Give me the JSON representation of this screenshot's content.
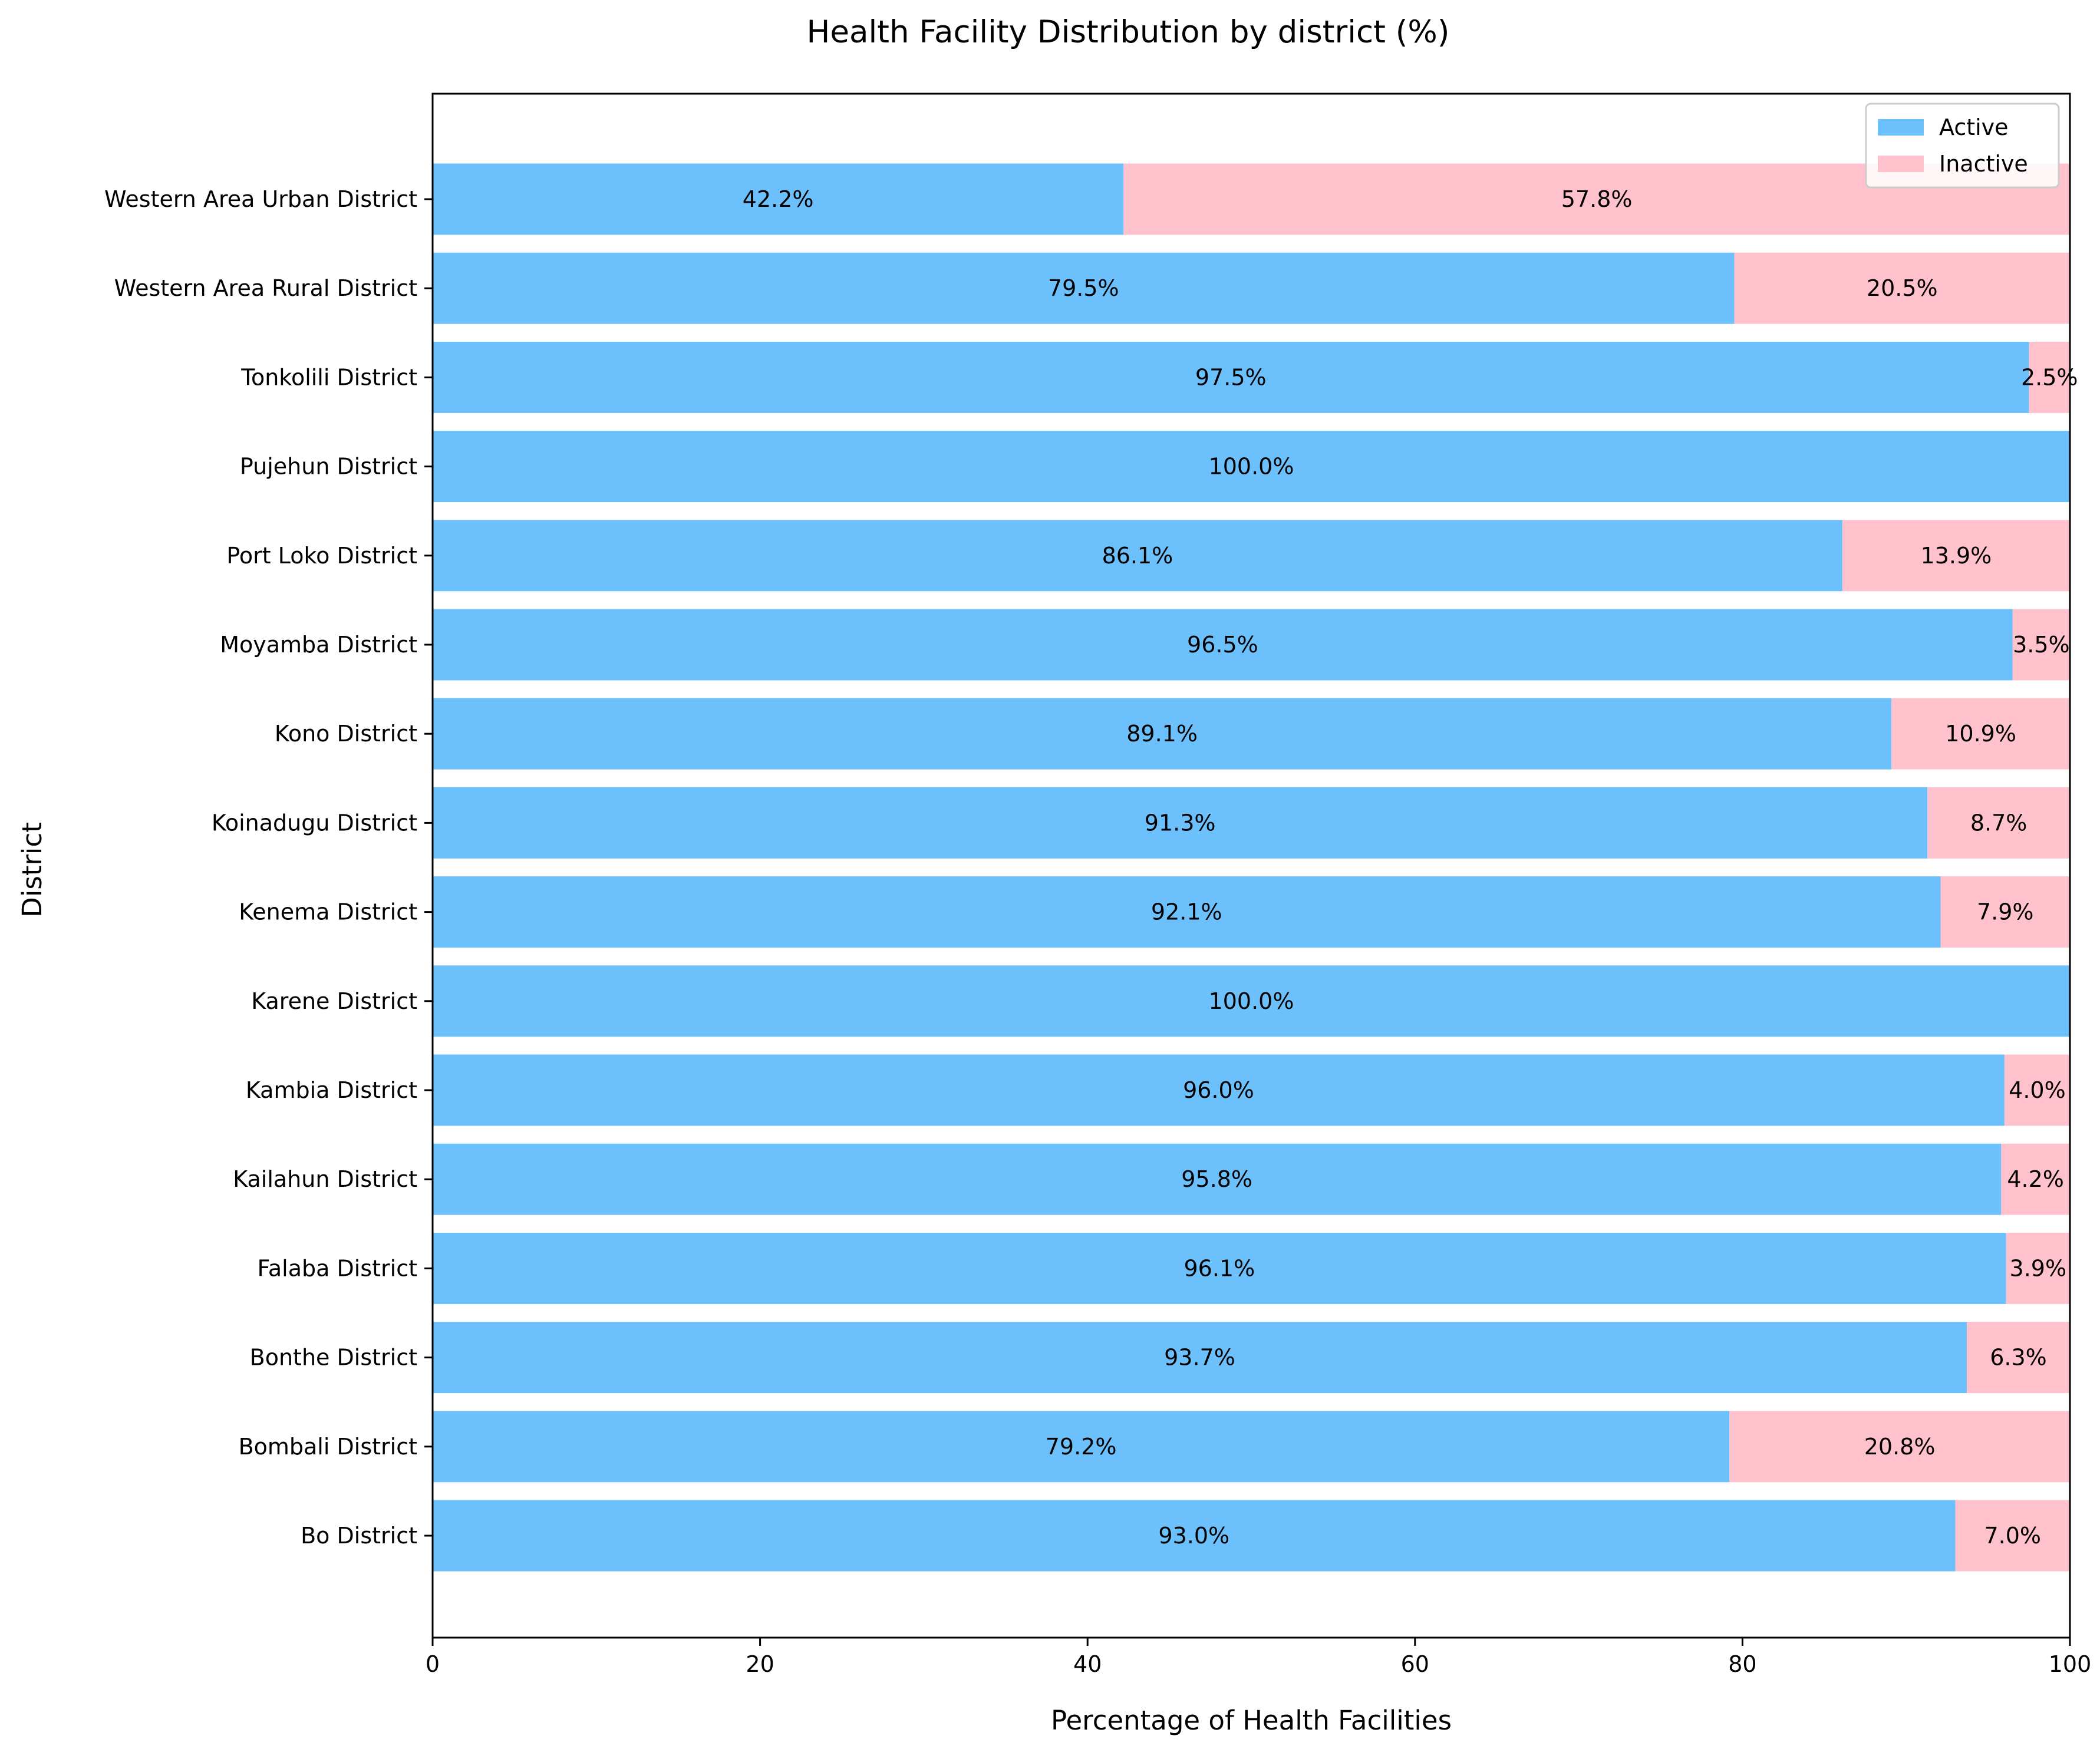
{
  "chart_data": {
    "type": "bar",
    "orientation": "horizontal",
    "stacked": true,
    "title": "Health Facility Distribution by district (%)",
    "xlabel": "Percentage of Health Facilities",
    "ylabel": "District",
    "xlim": [
      0,
      100
    ],
    "xticks": [
      "0",
      "20",
      "40",
      "60",
      "80",
      "100"
    ],
    "categories": [
      "Bo District",
      "Bombali District",
      "Bonthe District",
      "Falaba District",
      "Kailahun District",
      "Kambia District",
      "Karene District",
      "Kenema District",
      "Koinadugu District",
      "Kono District",
      "Moyamba District",
      "Port Loko District",
      "Pujehun District",
      "Tonkolili District",
      "Western Area Rural District",
      "Western Area Urban District"
    ],
    "series": [
      {
        "name": "Active",
        "color": "#6cc1fc",
        "values": [
          93.0,
          79.2,
          93.7,
          96.1,
          95.8,
          96.0,
          100.0,
          92.1,
          91.3,
          89.1,
          96.5,
          86.1,
          100.0,
          97.5,
          79.5,
          42.2
        ],
        "labels": [
          "93.0%",
          "79.2%",
          "93.7%",
          "96.1%",
          "95.8%",
          "96.0%",
          "100.0%",
          "92.1%",
          "91.3%",
          "89.1%",
          "96.5%",
          "86.1%",
          "100.0%",
          "97.5%",
          "79.5%",
          "42.2%"
        ]
      },
      {
        "name": "Inactive",
        "color": "#ffc2cd",
        "values": [
          7.0,
          20.8,
          6.3,
          3.9,
          4.2,
          4.0,
          0.0,
          7.9,
          8.7,
          10.9,
          3.5,
          13.9,
          0.0,
          2.5,
          20.5,
          57.8
        ],
        "labels": [
          "7.0%",
          "20.8%",
          "6.3%",
          "3.9%",
          "4.2%",
          "4.0%",
          "",
          "7.9%",
          "8.7%",
          "10.9%",
          "3.5%",
          "13.9%",
          "",
          "2.5%",
          "20.5%",
          "57.8%"
        ]
      }
    ],
    "legend_position": "top-right",
    "grid": false
  }
}
